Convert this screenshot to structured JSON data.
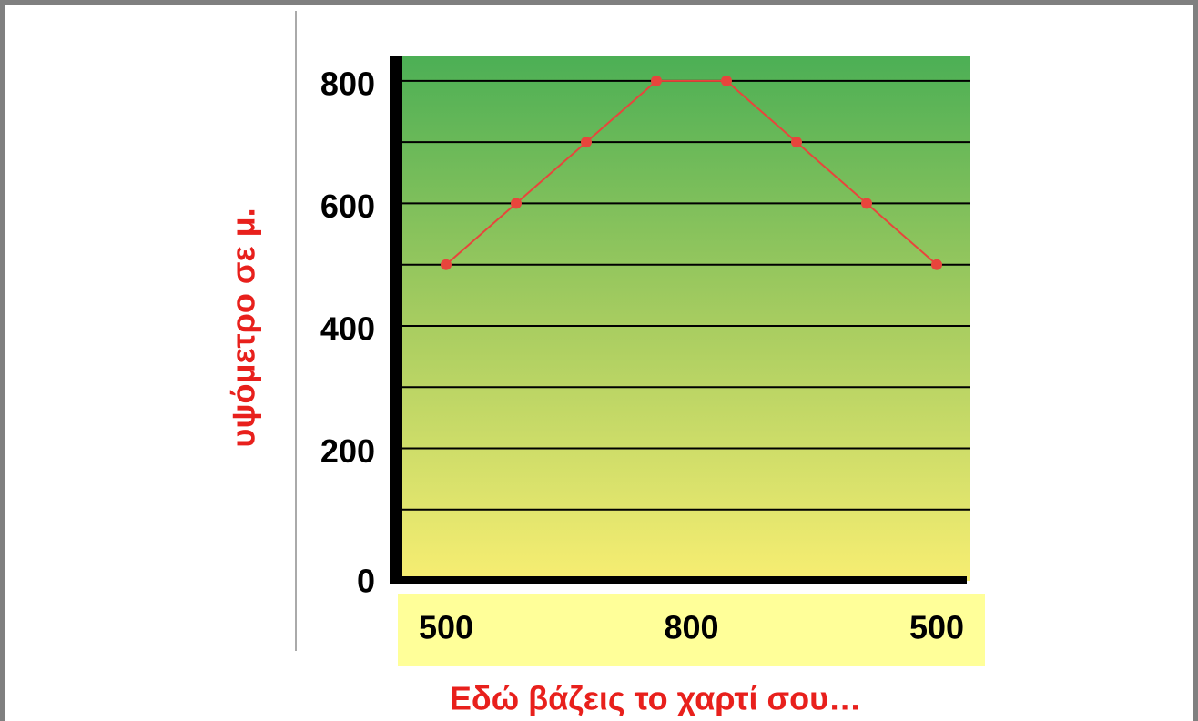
{
  "chart_data": {
    "type": "line",
    "ylabel": "υψόμετρο σε μ.",
    "xlabel": "Εδώ βάζεις το χαρτί σου…",
    "x_labels": [
      "500",
      "800",
      "500"
    ],
    "values": [
      500,
      600,
      700,
      800,
      800,
      700,
      600,
      500
    ],
    "color": "#e8453c",
    "ylim": [
      0,
      840
    ],
    "yticks": [
      0,
      200,
      400,
      600,
      800
    ],
    "grid_lines": [
      100,
      200,
      300,
      400,
      500,
      600,
      700,
      800
    ],
    "grid": true
  }
}
